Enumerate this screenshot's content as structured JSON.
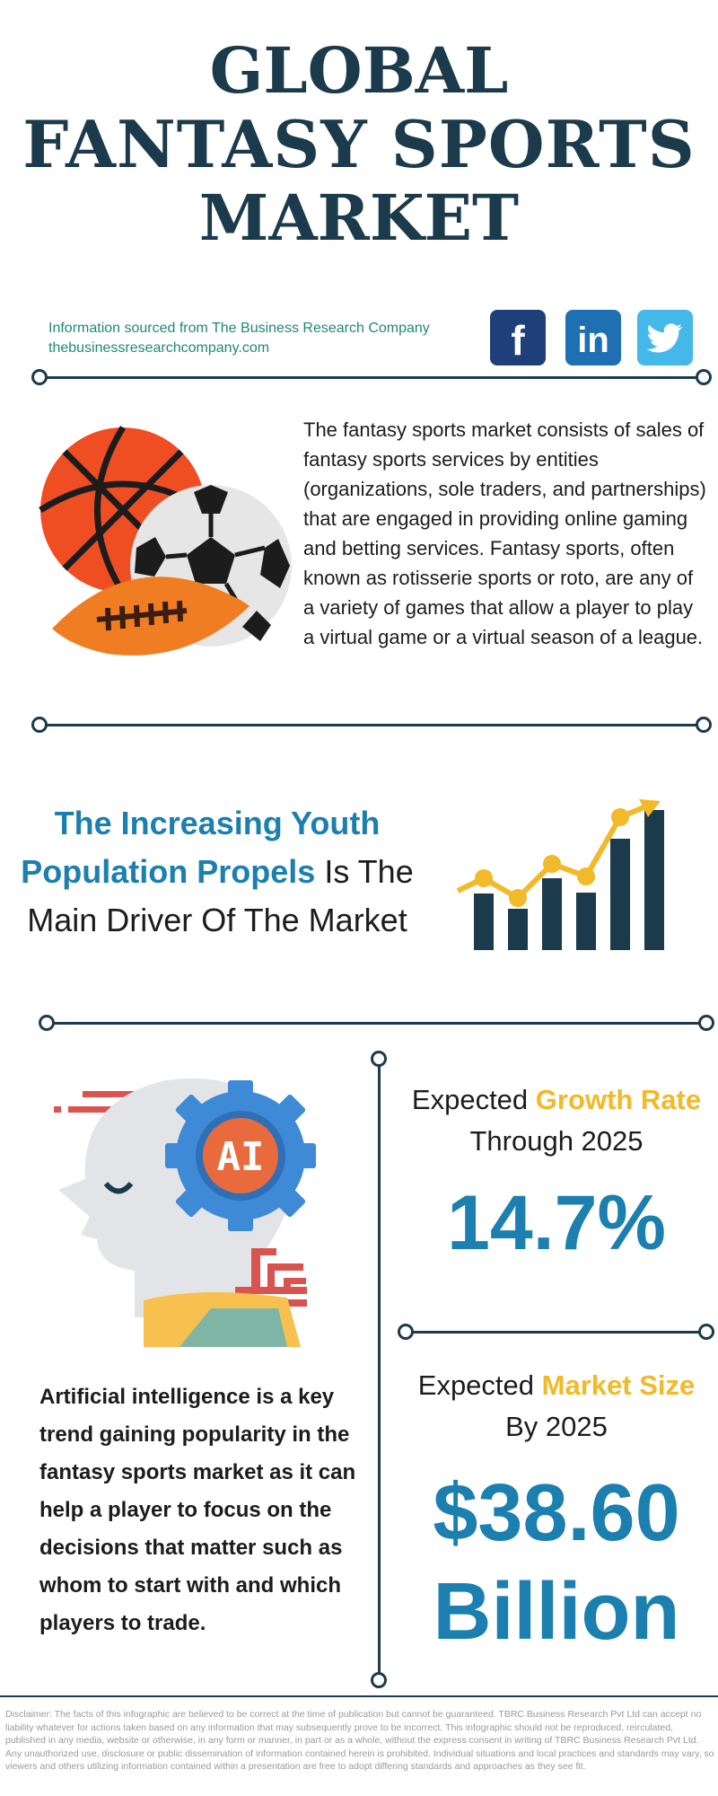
{
  "title": {
    "line1": "GLOBAL",
    "line2": "FANTASY SPORTS",
    "line3": "MARKET"
  },
  "source": {
    "line1": "Information sourced from The Business Research Company",
    "line2": "thebusinessresearchcompany.com"
  },
  "social": {
    "facebook_glyph": "f",
    "linkedin_glyph": "in"
  },
  "description": "The fantasy sports market consists of sales of fantasy sports services by entities (organizations, sole traders, and partnerships) that are engaged in providing online gaming and betting services. Fantasy sports, often known as rotisserie sports or roto, are any of a variety of games that allow a player to play a virtual game or a virtual season of a league.",
  "driver": {
    "highlight": "The Increasing Youth Population Propels",
    "rest": "Is The Main Driver Of The Market"
  },
  "growth": {
    "prefix": "Expected",
    "highlight": "Growth Rate",
    "suffix": "Through 2025",
    "value": "14.7%"
  },
  "market_size": {
    "prefix": "Expected",
    "highlight": "Market Size",
    "suffix": "By 2025",
    "value_line1": "$38.60",
    "value_line2": "Billion"
  },
  "ai_badge": "AI",
  "trend": "Artificial intelligence is a key trend gaining popularity in the fantasy sports market as it can help a player to focus on the decisions that matter such as whom to start with and which players to trade.",
  "disclaimer": "Disclaimer: The facts of this infographic are believed to be correct at the time of publication but cannot be guaranteed. TBRC Business Research Pvt Ltd can accept no liability whatever for actions taken based on any information that may subsequently prove to be incorrect. This infographic should not be reproduced, reirculated, published in any media, website or otherwise, in any form or manner, in part or as a whole, without the express consent in writing of TBRC Business Research Pvt Ltd. Any unauthorized use, disclosure or public dissemination of information contained herein is prohibited. Individual situations and local practices and standards may vary, so viewers and others utilizing information contained within a presentation are free to adopt differing standards and approaches as they see fit.",
  "colors": {
    "navy": "#1b3a4b",
    "blue": "#1b7fb0",
    "yellow": "#f2b928",
    "green": "#1f8a6f"
  }
}
